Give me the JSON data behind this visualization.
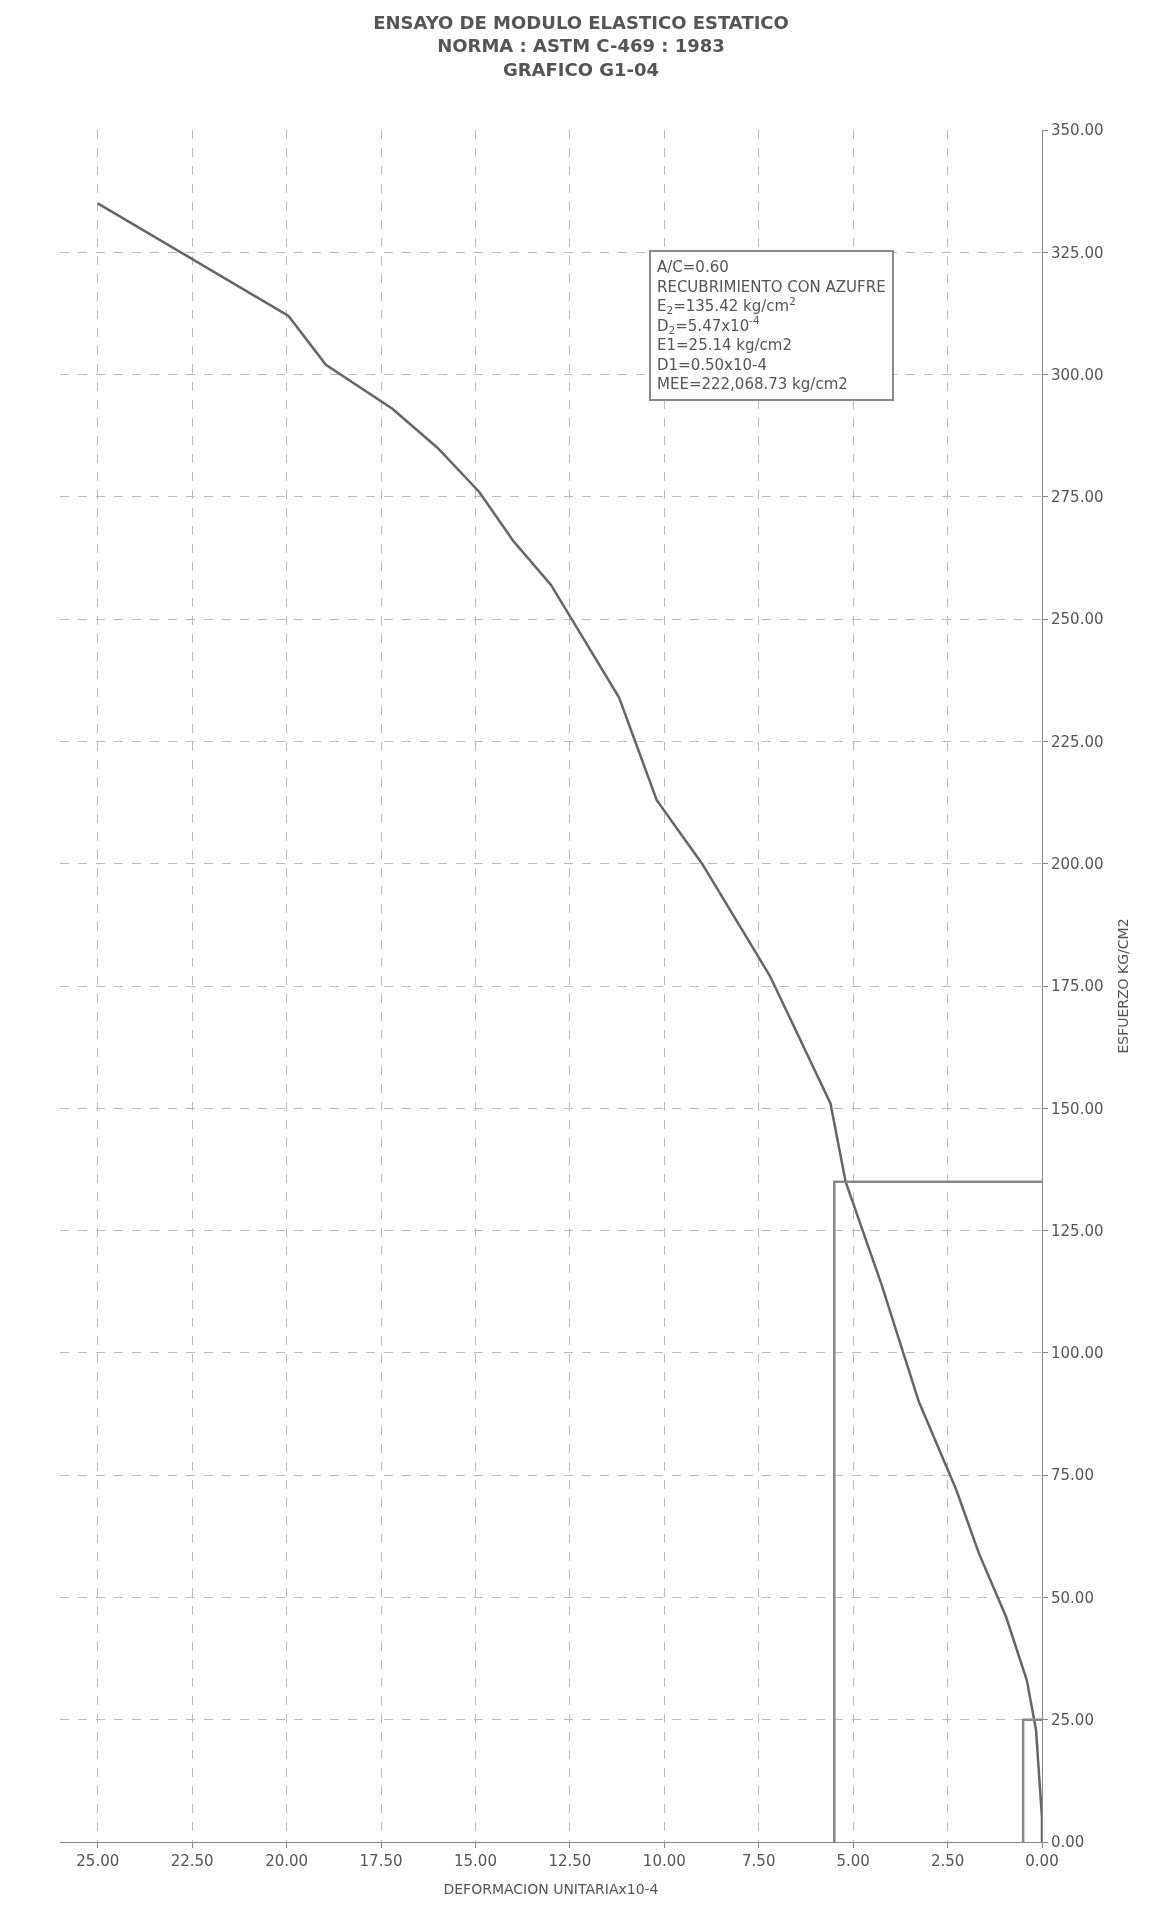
{
  "chart_data": {
    "type": "line",
    "title": "ENSAYO DE MODULO ELASTICO ESTATICO\nNORMA : ASTM C-469 : 1983\nGRAFICO G1-04",
    "xlabel": "DEFORMACION UNITARIAx10-4",
    "ylabel": "ESFUERZO KG/CM2",
    "series": [
      {
        "color": "#666666",
        "x": [
          0,
          0,
          0.16,
          0.4,
          0.95,
          1.67,
          2.27,
          3.26,
          4.25,
          5.2,
          5.6,
          7.2,
          9.0,
          10.2,
          11.2,
          13.0,
          14.0,
          14.9,
          16.0,
          17.2,
          18.96,
          19.95,
          25.0
        ],
        "values": [
          0,
          5,
          23,
          33,
          46,
          59,
          72,
          90,
          114,
          135,
          151,
          177,
          200,
          213,
          234,
          257,
          266,
          276,
          285,
          293,
          302,
          312,
          335
        ]
      },
      {
        "color": "#888888",
        "x": [
          5.5,
          5.5,
          0
        ],
        "values": [
          0,
          135,
          135
        ]
      },
      {
        "color": "#888888",
        "x": [
          0.5,
          0.5,
          0
        ],
        "values": [
          0,
          25,
          25
        ]
      }
    ],
    "annotations": [
      "A/C=0.60\nRECUBRIMIENTO CON AZUFRE\nE$_{2}$=135.42 kg/cm$^{2}$\nD$_{2}$=5.47x10$^{-4}$\nE1=25.14 kg/cm2\nD1=0.50x10-4\nMEE=222,068.73 kg/cm2"
    ],
    "xlim": [
      26,
      0
    ],
    "xticks": [
      {
        "value": 0,
        "label": "0.00"
      },
      {
        "value": 2.5,
        "label": "2.50"
      },
      {
        "value": 5,
        "label": "5.00"
      },
      {
        "value": 7.5,
        "label": "7.50"
      },
      {
        "value": 10,
        "label": "10.00"
      },
      {
        "value": 12.5,
        "label": "12.50"
      },
      {
        "value": 15,
        "label": "15.00"
      },
      {
        "value": 17.5,
        "label": "17.50"
      },
      {
        "value": 20,
        "label": "20.00"
      },
      {
        "value": 22.5,
        "label": "22.50"
      },
      {
        "value": 25,
        "label": "25.00"
      }
    ],
    "ylim": [
      0,
      350
    ],
    "yticks": [
      {
        "value": 0,
        "label": "0.00"
      },
      {
        "value": 25,
        "label": "25.00"
      },
      {
        "value": 50,
        "label": "50.00"
      },
      {
        "value": 75,
        "label": "75.00"
      },
      {
        "value": 100,
        "label": "100.00"
      },
      {
        "value": 125,
        "label": "125.00"
      },
      {
        "value": 150,
        "label": "150.00"
      },
      {
        "value": 175,
        "label": "175.00"
      },
      {
        "value": 200,
        "label": "200.00"
      },
      {
        "value": 225,
        "label": "225.00"
      },
      {
        "value": 250,
        "label": "250.00"
      },
      {
        "value": 275,
        "label": "275.00"
      },
      {
        "value": 300,
        "label": "300.00"
      },
      {
        "value": 325,
        "label": "325.00"
      },
      {
        "value": 350,
        "label": "350.00"
      }
    ],
    "grid": true,
    "line_style": "solid"
  }
}
